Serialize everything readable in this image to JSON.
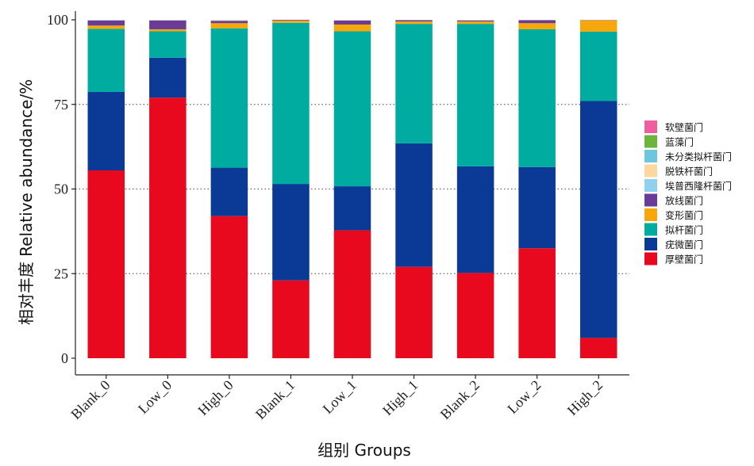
{
  "chart_data": {
    "type": "bar",
    "stacked": true,
    "xlabel": "组别  Groups",
    "ylabel": "相对丰度  Relative abundance/%",
    "ylim": [
      0,
      100
    ],
    "yticks": [
      0,
      25,
      50,
      75,
      100
    ],
    "grid": "horizontal dotted at 25, 50, 75",
    "legend_position": "right",
    "categories": [
      "Blank_0",
      "Low_0",
      "High_0",
      "Blank_1",
      "Low_1",
      "High_1",
      "Blank_2",
      "Low_2",
      "High_2"
    ],
    "series": [
      {
        "name": "厚壁菌门",
        "color": "#e8091e",
        "values": [
          55.5,
          77.0,
          42.0,
          23.0,
          37.8,
          27.0,
          25.2,
          32.5,
          6.0
        ]
      },
      {
        "name": "疣微菌门",
        "color": "#0a3a96",
        "values": [
          23.2,
          11.8,
          14.3,
          28.5,
          13.0,
          36.5,
          31.5,
          24.0,
          70.0
        ]
      },
      {
        "name": "拟杆菌门",
        "color": "#00aca0",
        "values": [
          18.6,
          7.8,
          41.2,
          47.6,
          45.8,
          35.3,
          42.1,
          40.7,
          20.5
        ]
      },
      {
        "name": "变形菌门",
        "color": "#f5a70c",
        "values": [
          1.0,
          0.6,
          1.5,
          0.7,
          2.0,
          0.7,
          0.7,
          1.8,
          3.3
        ]
      },
      {
        "name": "放线菌门",
        "color": "#6a3c97",
        "values": [
          1.5,
          2.6,
          0.7,
          0.2,
          1.2,
          0.4,
          0.3,
          0.9,
          0.1
        ]
      },
      {
        "name": "埃普西隆杆菌门",
        "color": "#8fd0ec",
        "values": [
          0.05,
          0.05,
          0.1,
          0.0,
          0.0,
          0.0,
          0.1,
          0.0,
          0.0
        ]
      },
      {
        "name": "脱铁杆菌门",
        "color": "#fcd8a0",
        "values": [
          0.1,
          0.1,
          0.2,
          0.0,
          0.2,
          0.1,
          0.1,
          0.1,
          0.1
        ]
      },
      {
        "name": "未分类拟杆菌门",
        "color": "#6dc6dc",
        "values": [
          0.05,
          0.05,
          0.0,
          0.0,
          0.0,
          0.0,
          0.0,
          0.0,
          0.0
        ]
      },
      {
        "name": "蓝藻门",
        "color": "#6cb33f",
        "values": [
          0.0,
          0.0,
          0.0,
          0.0,
          0.0,
          0.0,
          0.0,
          0.0,
          0.0
        ]
      },
      {
        "name": "软壁菌门",
        "color": "#ee5fa0",
        "values": [
          0.0,
          0.0,
          0.0,
          0.0,
          0.0,
          0.0,
          0.0,
          0.0,
          0.0
        ]
      }
    ],
    "legend": [
      "软壁菌门",
      "蓝藻门",
      "未分类拟杆菌门",
      "脱铁杆菌门",
      "埃普西隆杆菌门",
      "放线菌门",
      "变形菌门",
      "拟杆菌门",
      "疣微菌门",
      "厚壁菌门"
    ]
  }
}
